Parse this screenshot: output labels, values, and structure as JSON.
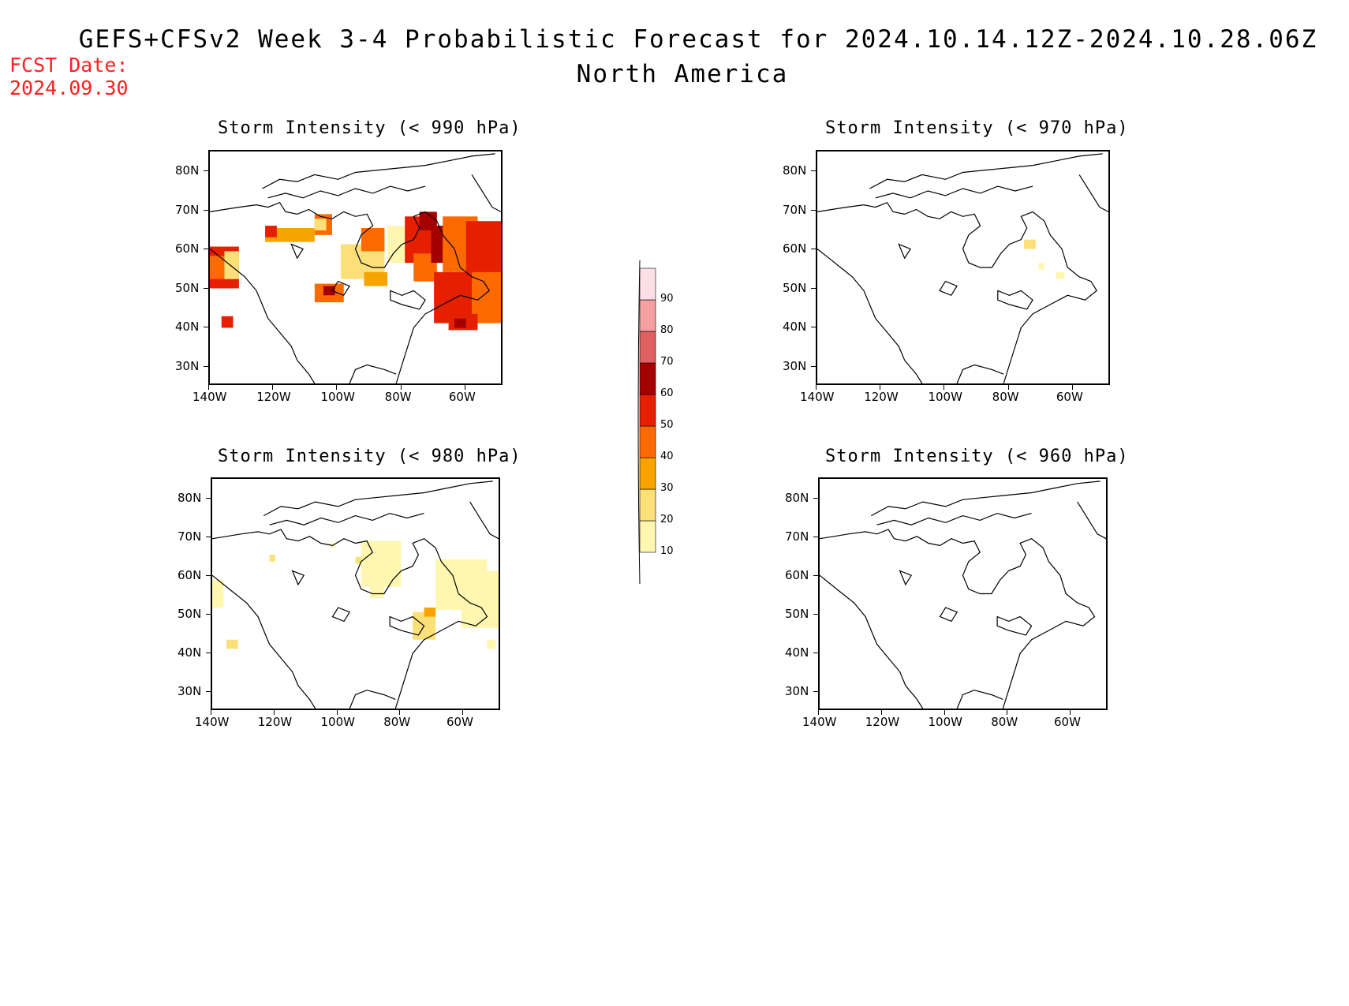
{
  "title": "GEFS+CFSv2 Week 3-4 Probabilistic Forecast for 2024.10.14.12Z-2024.10.28.06Z",
  "subtitle": "North America",
  "fcst_label": "FCST Date:",
  "fcst_date": "2024.09.30",
  "lat_labels": [
    "80N",
    "70N",
    "60N",
    "50N",
    "40N",
    "30N"
  ],
  "lon_labels": [
    "140W",
    "120W",
    "100W",
    "80W",
    "60W"
  ],
  "panels": [
    {
      "id": "p990",
      "title": "Storm Intensity (< 990 hPa)"
    },
    {
      "id": "p970",
      "title": "Storm Intensity (< 970 hPa)"
    },
    {
      "id": "p980",
      "title": "Storm Intensity (< 980 hPa)"
    },
    {
      "id": "p960",
      "title": "Storm Intensity (< 960 hPa)"
    }
  ],
  "colorbar": {
    "levels": [
      "10",
      "20",
      "30",
      "40",
      "50",
      "60",
      "70",
      "80",
      "90"
    ],
    "colors": [
      "#fff7b0",
      "#fbe07a",
      "#f7a400",
      "#ff6a00",
      "#e52000",
      "#a50000",
      "#de6060",
      "#f4a0a0",
      "#fde0e6"
    ]
  }
}
